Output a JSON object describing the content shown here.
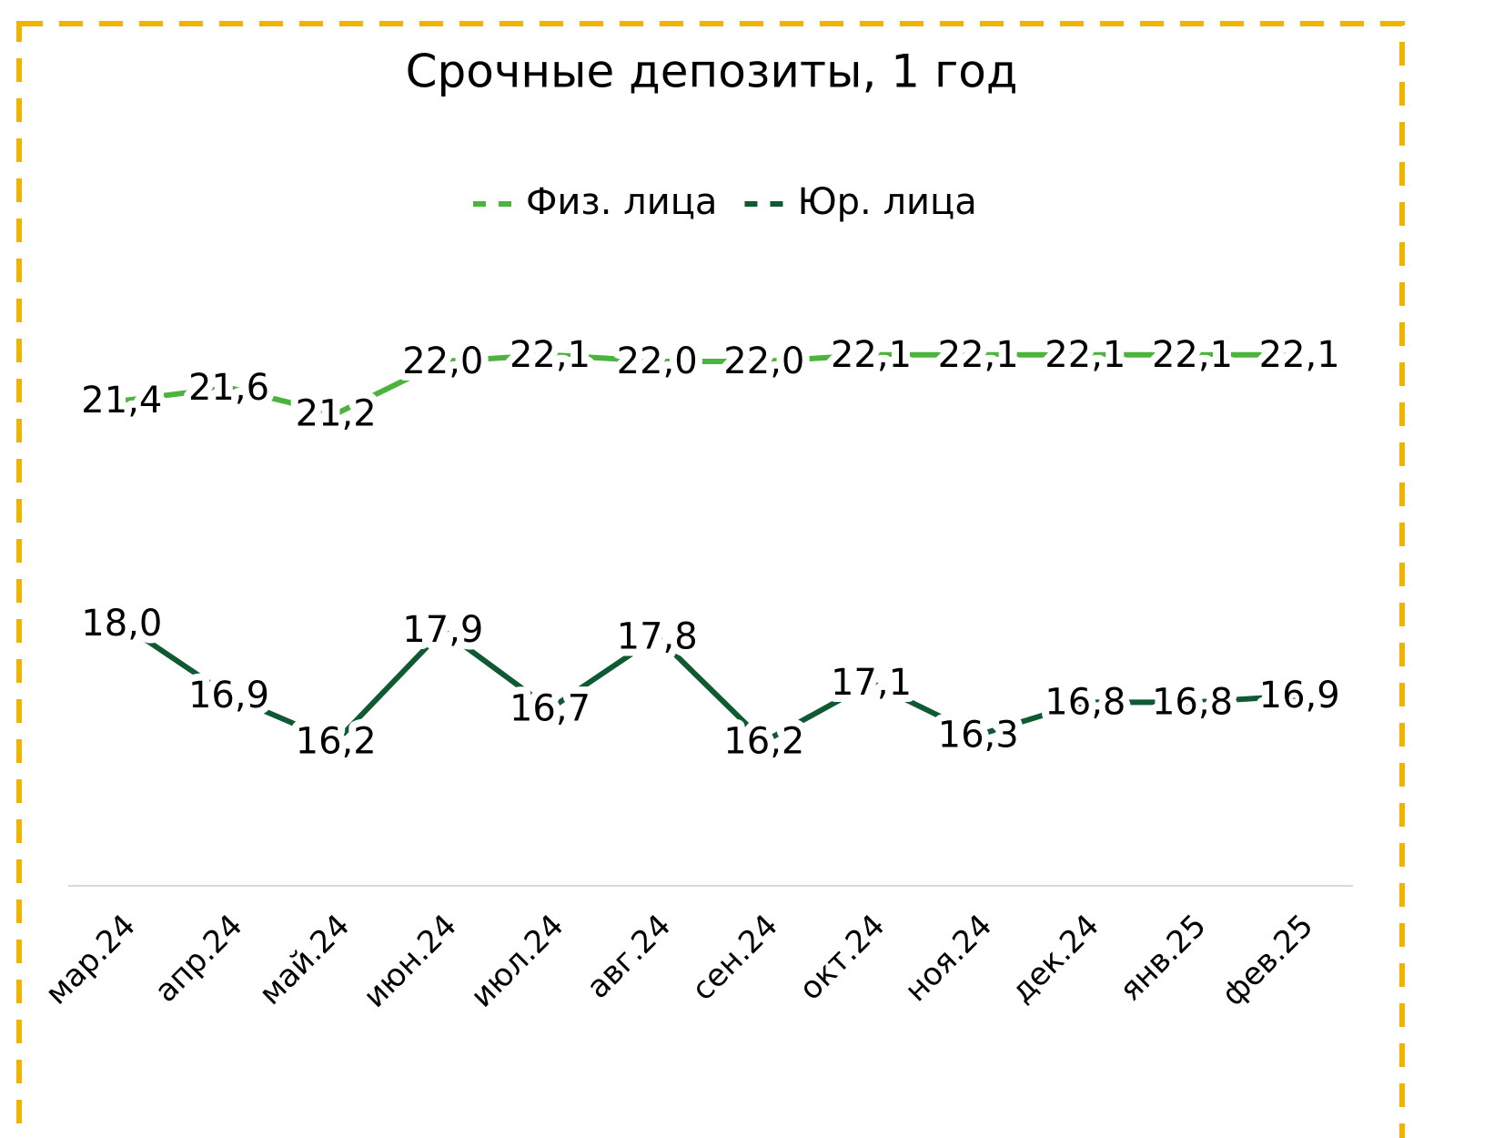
{
  "chart_data": {
    "type": "line",
    "title": "Срочные депозиты, 1 год",
    "categories": [
      "мар.24",
      "апр.24",
      "май.24",
      "июн.24",
      "июл.24",
      "авг.24",
      "сен.24",
      "окт.24",
      "ноя.24",
      "дек.24",
      "янв.25",
      "фев.25"
    ],
    "series": [
      {
        "name": "Физ. лица",
        "color": "#4cb33e",
        "values": [
          21.4,
          21.6,
          21.2,
          22.0,
          22.1,
          22.0,
          22.0,
          22.1,
          22.1,
          22.1,
          22.1,
          22.1
        ],
        "value_labels": [
          "21,4",
          "21,6",
          "21,2",
          "22,0",
          "22,1",
          "22,0",
          "22,0",
          "22,1",
          "22,1",
          "22,1",
          "22,1",
          "22,1"
        ]
      },
      {
        "name": "Юр. лица",
        "color": "#0f5a32",
        "values": [
          18.0,
          16.9,
          16.2,
          17.9,
          16.7,
          17.8,
          16.2,
          17.1,
          16.3,
          16.8,
          16.8,
          16.9
        ],
        "value_labels": [
          "18,0",
          "16,9",
          "16,2",
          "17,9",
          "16,7",
          "17,8",
          "16,2",
          "17,1",
          "16,3",
          "16,8",
          "16,8",
          "16,9"
        ]
      }
    ],
    "ylim": [
      14,
      23
    ],
    "legend": "top"
  }
}
